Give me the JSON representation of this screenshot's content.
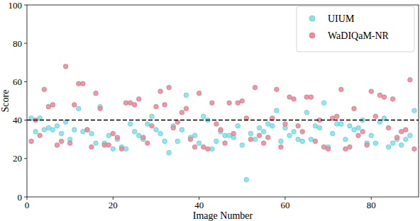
{
  "chart_data": {
    "type": "scatter",
    "x_label": "Image Number",
    "y_label": "Score",
    "x": [
      1,
      2,
      3,
      4,
      5,
      6,
      7,
      8,
      9,
      10,
      11,
      12,
      13,
      14,
      15,
      16,
      17,
      18,
      19,
      20,
      21,
      22,
      23,
      24,
      25,
      26,
      27,
      28,
      29,
      30,
      31,
      32,
      33,
      34,
      35,
      36,
      37,
      38,
      39,
      40,
      41,
      42,
      43,
      44,
      45,
      46,
      47,
      48,
      49,
      50,
      51,
      52,
      53,
      54,
      55,
      56,
      57,
      58,
      59,
      60,
      61,
      62,
      63,
      64,
      65,
      66,
      67,
      68,
      69,
      70,
      71,
      72,
      73,
      74,
      75,
      76,
      77,
      78,
      79,
      80,
      81,
      82,
      83,
      84,
      85,
      86,
      87,
      88,
      89,
      90
    ],
    "series": [
      {
        "name": "UIUM",
        "color": "#7fe6ee",
        "marker": "circle",
        "values": [
          41,
          34,
          41,
          35,
          36,
          35,
          37,
          33,
          39,
          30,
          35,
          46,
          34,
          35,
          33,
          28,
          47,
          28,
          32,
          25,
          30,
          26,
          25,
          38,
          34,
          32,
          30,
          38,
          42,
          35,
          33,
          29,
          23,
          37,
          29,
          35,
          53,
          31,
          32,
          28,
          42,
          40,
          25,
          29,
          34,
          32,
          32,
          31,
          37,
          27,
          9,
          33,
          30,
          36,
          34,
          38,
          37,
          45,
          29,
          36,
          32,
          34,
          30,
          29,
          44,
          30,
          37,
          36,
          49,
          26,
          33,
          38,
          38,
          30,
          37,
          35,
          36,
          40,
          28,
          32,
          28,
          39,
          41,
          26,
          28,
          30,
          27,
          30,
          32,
          45
        ]
      },
      {
        "name": "WaDIQaM-NR",
        "color": "#ee8c9c",
        "marker": "circle",
        "values": [
          29,
          40,
          32,
          56,
          47,
          48,
          27,
          29,
          68,
          28,
          48,
          59,
          59,
          35,
          26,
          54,
          46,
          27,
          27,
          33,
          31,
          25,
          49,
          49,
          48,
          51,
          31,
          28,
          37,
          47,
          55,
          48,
          57,
          36,
          39,
          44,
          46,
          30,
          26,
          54,
          26,
          25,
          49,
          38,
          35,
          28,
          49,
          33,
          49,
          50,
          41,
          30,
          57,
          32,
          28,
          31,
          41,
          56,
          26,
          38,
          52,
          51,
          37,
          34,
          52,
          52,
          29,
          40,
          26,
          25,
          41,
          42,
          56,
          25,
          26,
          46,
          32,
          34,
          27,
          55,
          42,
          53,
          52,
          36,
          51,
          31,
          34,
          35,
          61,
          25
        ]
      }
    ],
    "hline": 40,
    "xlim": [
      0,
      91
    ],
    "ylim": [
      0,
      100
    ],
    "xticks": [
      0,
      20,
      40,
      60,
      80
    ],
    "yticks": [
      0,
      20,
      40,
      60,
      80,
      100
    ],
    "legend": "upper right",
    "grid": false
  }
}
